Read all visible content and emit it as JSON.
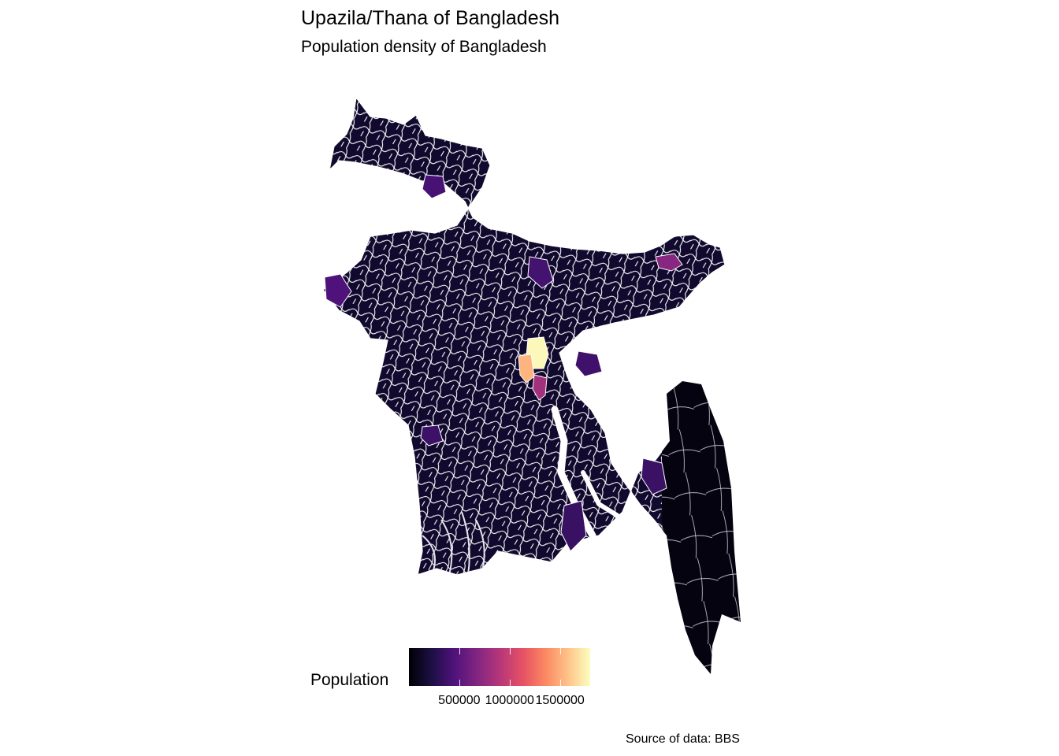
{
  "title": "Upazila/Thana of Bangladesh",
  "subtitle": "Population density of Bangladesh",
  "caption": "Source of data: BBS",
  "legend": {
    "title": "Population",
    "tick_labels": [
      "500000",
      "1000000",
      "1500000"
    ],
    "tick_values": [
      500000,
      1000000,
      1500000
    ],
    "range": [
      0,
      1800000
    ],
    "palette": [
      "#000004",
      "#1c1044",
      "#4f127b",
      "#812581",
      "#b5367a",
      "#e55064",
      "#fb8761",
      "#fec287",
      "#fcfdbf"
    ]
  },
  "map": {
    "fill_default": "#0c0826",
    "border_color": "#ffffff",
    "hotspots": [
      {
        "name": "dhaka-north-hotspot",
        "population": 1780000
      },
      {
        "name": "dhaka-west-hotspot",
        "population": 1520000
      },
      {
        "name": "dhaka-south-hotspot",
        "population": 820000
      },
      {
        "name": "sylhet-hotspot",
        "population": 700000
      },
      {
        "name": "western-border-hotspot",
        "population": 450000
      },
      {
        "name": "rangpur-hotspot",
        "population": 420000
      },
      {
        "name": "central-north-hotspot",
        "population": 400000
      },
      {
        "name": "comilla-hotspot",
        "population": 380000
      },
      {
        "name": "jessore-hotspot",
        "population": 370000
      },
      {
        "name": "chittagong-coast-hotspot",
        "population": 360000
      },
      {
        "name": "bhola-hotspot",
        "population": 350000
      }
    ]
  }
}
